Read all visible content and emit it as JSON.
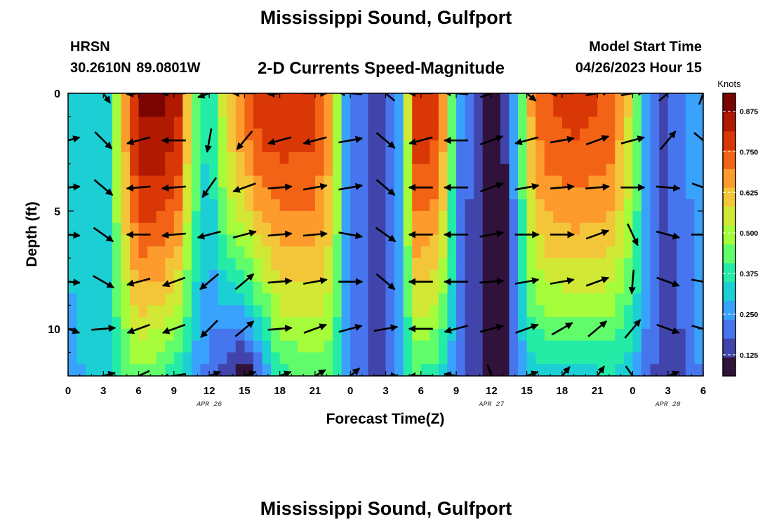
{
  "chart_data": {
    "type": "heatmap",
    "title": "Mississippi Sound, Gulfport",
    "subtitle": "2-D Currents Speed-Magnitude",
    "station": "HRSN",
    "location": "30.2610N  89.0801W",
    "model_start_label": "Model Start Time",
    "model_start_value": "04/26/2023 Hour 15",
    "xlabel": "Forecast Time(Z)",
    "ylabel": "Depth (ft)",
    "x_unit_note": "x = hours since 00Z Apr 26",
    "xlim": [
      0,
      54
    ],
    "ylim": [
      0,
      12
    ],
    "x_ticks": [
      0,
      3,
      6,
      9,
      12,
      15,
      18,
      21,
      24,
      27,
      30,
      33,
      36,
      39,
      42,
      45,
      48,
      51,
      54
    ],
    "x_tick_labels": [
      "0",
      "3",
      "6",
      "9",
      "12",
      "15",
      "18",
      "21",
      "0",
      "3",
      "6",
      "9",
      "12",
      "15",
      "18",
      "21",
      "0",
      "3",
      "6"
    ],
    "y_ticks": [
      0,
      5,
      10
    ],
    "y_tick_labels": [
      "0",
      "5",
      "10"
    ],
    "date_labels": [
      {
        "x": 12,
        "text": "APR 26"
      },
      {
        "x": 36,
        "text": "APR 27"
      },
      {
        "x": 51,
        "text": "APR 28"
      }
    ],
    "colorbar": {
      "label": "Knots",
      "min": 0.06,
      "max": 0.93,
      "ticks": [
        0.125,
        0.25,
        0.375,
        0.5,
        0.625,
        0.75,
        0.875
      ],
      "tick_labels": [
        "0.125",
        "0.250",
        "0.375",
        "0.500",
        "0.625",
        "0.750",
        "0.875"
      ]
    },
    "speed_field": {
      "time_knots": [
        0,
        2,
        3.5,
        4.3,
        6,
        8,
        9.5,
        10.5,
        12,
        13.5,
        15,
        16.5,
        18,
        21,
        22.5,
        23.5,
        25,
        27,
        28.2,
        29.5,
        31,
        32,
        33.2,
        34.5,
        36.5,
        37.5,
        38.5,
        39.5,
        40.5,
        43,
        46,
        48,
        49,
        50.5,
        52,
        53,
        54
      ],
      "top_speed": [
        0.3,
        0.32,
        0.35,
        0.55,
        0.88,
        0.88,
        0.82,
        0.5,
        0.32,
        0.6,
        0.72,
        0.8,
        0.8,
        0.78,
        0.65,
        0.3,
        0.18,
        0.15,
        0.25,
        0.8,
        0.8,
        0.65,
        0.25,
        0.15,
        0.07,
        0.15,
        0.42,
        0.68,
        0.75,
        0.78,
        0.75,
        0.55,
        0.3,
        0.17,
        0.2,
        0.25,
        0.28
      ],
      "bottom_speed": [
        0.28,
        0.3,
        0.3,
        0.38,
        0.45,
        0.4,
        0.33,
        0.28,
        0.2,
        0.12,
        0.06,
        0.2,
        0.38,
        0.42,
        0.4,
        0.3,
        0.18,
        0.12,
        0.3,
        0.4,
        0.38,
        0.32,
        0.2,
        0.15,
        0.06,
        0.13,
        0.25,
        0.3,
        0.32,
        0.33,
        0.34,
        0.3,
        0.22,
        0.14,
        0.16,
        0.2,
        0.25
      ]
    },
    "vector_depths": [
      0,
      2,
      4,
      6,
      8,
      10,
      12
    ],
    "vector_times": [
      0,
      3,
      6,
      9,
      12,
      15,
      18,
      21,
      24,
      27,
      30,
      33,
      36,
      39,
      42,
      45,
      48,
      51,
      54
    ],
    "vector_angles_deg": [
      [
        25,
        -55,
        185,
        180,
        200,
        180,
        185,
        0,
        175,
        140,
        180,
        175,
        20,
        -40,
        180,
        10,
        10,
        40,
        70
      ],
      [
        15,
        -45,
        195,
        180,
        260,
        230,
        195,
        195,
        10,
        -40,
        195,
        180,
        20,
        195,
        10,
        20,
        15,
        50,
        -40
      ],
      [
        5,
        -40,
        185,
        185,
        235,
        200,
        5,
        10,
        10,
        -40,
        180,
        180,
        20,
        10,
        5,
        5,
        0,
        -5,
        -20
      ],
      [
        -5,
        -35,
        180,
        185,
        195,
        15,
        5,
        5,
        -10,
        -35,
        180,
        180,
        10,
        0,
        0,
        20,
        -65,
        -15,
        0
      ],
      [
        -5,
        -30,
        195,
        200,
        220,
        40,
        5,
        10,
        0,
        -40,
        180,
        180,
        5,
        10,
        10,
        20,
        -95,
        -20,
        -10
      ],
      [
        -20,
        5,
        200,
        200,
        225,
        40,
        5,
        20,
        15,
        10,
        180,
        195,
        15,
        20,
        30,
        40,
        50,
        -20,
        -15
      ],
      [
        -70,
        15,
        205,
        190,
        20,
        20,
        20,
        30,
        40,
        0,
        180,
        170,
        -70,
        20,
        50,
        55,
        -55,
        20,
        45
      ]
    ]
  },
  "colors": {
    "palette_turbo": [
      "#30123b",
      "#4145ab",
      "#4675ed",
      "#39a2fc",
      "#1bcfd4",
      "#24eca6",
      "#61fc6c",
      "#a4fc3b",
      "#d1e834",
      "#f3c63a",
      "#fe9b2d",
      "#f36315",
      "#d93806",
      "#b11901",
      "#7a0402"
    ],
    "arrow": "#000000",
    "background": "#ffffff"
  }
}
